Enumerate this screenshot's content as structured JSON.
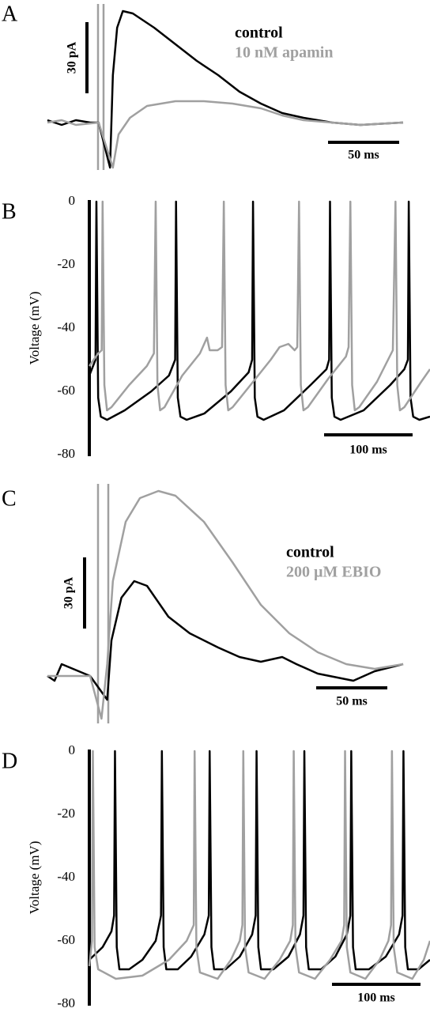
{
  "chart_data": [
    {
      "type": "line",
      "label": "A",
      "xlim": [
        0,
        250
      ],
      "ylim": [
        -20,
        50
      ],
      "scalebars": [
        {
          "value": 30,
          "label": "30 pA",
          "axis": "y"
        },
        {
          "value": 50,
          "label": "50 ms",
          "axis": "x"
        }
      ],
      "series": [
        {
          "name": "control",
          "color": "#000000",
          "x": [
            0,
            10,
            20,
            30,
            36,
            44,
            46,
            49,
            53,
            60,
            75,
            90,
            105,
            120,
            135,
            150,
            165,
            180,
            200,
            220,
            250
          ],
          "values": [
            1,
            -1,
            1,
            0,
            0,
            -19,
            20,
            40,
            47,
            46,
            40,
            33,
            26,
            20,
            13,
            8,
            4,
            2,
            0,
            -1,
            0
          ]
        },
        {
          "name": "10 nM apamin",
          "color": "#a0a0a0",
          "x": [
            0,
            10,
            20,
            36,
            46,
            50,
            58,
            70,
            90,
            110,
            130,
            150,
            165,
            180,
            200,
            220,
            250
          ],
          "values": [
            0,
            1,
            -1,
            0,
            -19,
            -5,
            2,
            7,
            9,
            9,
            8,
            6,
            3,
            1,
            0,
            -1,
            0
          ]
        }
      ]
    },
    {
      "type": "line",
      "label": "B",
      "ylabel": "Voltage (mV)",
      "xlim": [
        0,
        385
      ],
      "ylim": [
        -80,
        0
      ],
      "yticks": [
        0,
        -20,
        -40,
        -60,
        -80
      ],
      "scalebars": [
        {
          "value": 100,
          "label": "100 ms",
          "axis": "x"
        }
      ],
      "series": [
        {
          "color": "#000000",
          "x": [
            0,
            7,
            8,
            10,
            13,
            20,
            40,
            70,
            90,
            97,
            98,
            100,
            103,
            110,
            130,
            160,
            180,
            184,
            185,
            187,
            190,
            197,
            220,
            250,
            268,
            271,
            272,
            274,
            277,
            284,
            310,
            340,
            356,
            360,
            361,
            363,
            366,
            373,
            385
          ],
          "values": [
            -55,
            -50,
            0,
            -62,
            -68,
            -69,
            -66,
            -60,
            -55,
            -50,
            0,
            -62,
            -68,
            -69,
            -67,
            -60,
            -54,
            -50,
            0,
            -62,
            -68,
            -69,
            -66,
            -58,
            -53,
            -50,
            0,
            -62,
            -68,
            -69,
            -66,
            -58,
            -53,
            -50,
            0,
            -62,
            -68,
            -69,
            -68
          ]
        },
        {
          "color": "#a0a0a0",
          "x": [
            0,
            10,
            14,
            15,
            17,
            20,
            25,
            45,
            65,
            73,
            75,
            77,
            80,
            85,
            105,
            125,
            133,
            136,
            145,
            150,
            152,
            154,
            157,
            162,
            185,
            205,
            215,
            225,
            232,
            235,
            237,
            239,
            242,
            247,
            270,
            290,
            293,
            295,
            297,
            300,
            305,
            325,
            343,
            346,
            348,
            351,
            356,
            375,
            385
          ],
          "values": [
            -52,
            -48,
            -47,
            0,
            -58,
            -66,
            -65,
            -58,
            -52,
            -48,
            0,
            -58,
            -66,
            -65,
            -55,
            -48,
            -43,
            -47,
            -47,
            -46,
            0,
            -58,
            -66,
            -65,
            -57,
            -50,
            -46,
            -45,
            -47,
            -46,
            0,
            -58,
            -66,
            -65,
            -56,
            -49,
            -46,
            0,
            -58,
            -66,
            -65,
            -57,
            -47,
            0,
            -58,
            -66,
            -65,
            -57,
            -53
          ]
        }
      ]
    },
    {
      "type": "line",
      "label": "C",
      "xlim": [
        0,
        250
      ],
      "ylim": [
        -20,
        80
      ],
      "scalebars": [
        {
          "value": 30,
          "label": "30 pA",
          "axis": "y"
        },
        {
          "value": 50,
          "label": "50 ms",
          "axis": "x"
        }
      ],
      "series": [
        {
          "name": "control",
          "color": "#000000",
          "x": [
            0,
            5,
            10,
            30,
            42,
            45,
            52,
            61,
            70,
            85,
            100,
            120,
            135,
            150,
            165,
            175,
            190,
            215,
            230,
            250
          ],
          "values": [
            0,
            -2,
            5,
            0,
            -10,
            15,
            33,
            40,
            38,
            25,
            18,
            12,
            8,
            6,
            8,
            5,
            1,
            -2,
            2,
            5
          ]
        },
        {
          "name": "200 µM EBIO",
          "color": "#a0a0a0",
          "x": [
            0,
            30,
            38,
            42,
            46,
            55,
            65,
            78,
            90,
            110,
            130,
            150,
            170,
            190,
            210,
            230,
            250
          ],
          "values": [
            0,
            0,
            -18,
            5,
            40,
            65,
            75,
            78,
            76,
            65,
            48,
            30,
            18,
            10,
            5,
            3,
            5
          ]
        }
      ]
    },
    {
      "type": "line",
      "label": "D",
      "ylabel": "Voltage (mV)",
      "xlim": [
        0,
        385
      ],
      "ylim": [
        -80,
        0
      ],
      "yticks": [
        0,
        -20,
        -40,
        -60,
        -80
      ],
      "scalebars": [
        {
          "value": 100,
          "label": "100 ms",
          "axis": "x"
        }
      ],
      "series": [
        {
          "color": "#000000",
          "x": [
            0,
            15,
            25,
            28,
            29,
            31,
            34,
            45,
            60,
            75,
            81,
            82,
            84,
            87,
            100,
            115,
            130,
            135,
            136,
            138,
            141,
            154,
            170,
            184,
            188,
            189,
            191,
            194,
            208,
            225,
            238,
            242,
            243,
            245,
            248,
            262,
            278,
            291,
            295,
            296,
            298,
            301,
            316,
            335,
            350,
            354,
            355,
            357,
            360,
            372,
            385
          ],
          "values": [
            -66,
            -62,
            -57,
            -52,
            0,
            -62,
            -69,
            -69,
            -66,
            -60,
            -52,
            0,
            -62,
            -69,
            -69,
            -65,
            -58,
            -52,
            0,
            -62,
            -69,
            -69,
            -65,
            -58,
            -52,
            0,
            -62,
            -69,
            -69,
            -65,
            -58,
            -52,
            0,
            -62,
            -69,
            -69,
            -65,
            -58,
            -52,
            0,
            -62,
            -69,
            -69,
            -65,
            -58,
            -52,
            0,
            -62,
            -69,
            -69,
            -66
          ]
        },
        {
          "color": "#a0a0a0",
          "x": [
            0,
            3,
            4,
            6,
            10,
            30,
            60,
            90,
            110,
            118,
            119,
            121,
            125,
            145,
            160,
            170,
            173,
            174,
            176,
            180,
            198,
            215,
            227,
            230,
            231,
            233,
            237,
            255,
            272,
            285,
            288,
            289,
            291,
            295,
            312,
            328,
            338,
            341,
            342,
            344,
            348,
            365,
            378,
            385
          ],
          "values": [
            -68,
            -60,
            0,
            -62,
            -69,
            -72,
            -71,
            -66,
            -60,
            -55,
            0,
            -62,
            -70,
            -72,
            -66,
            -60,
            -55,
            0,
            -62,
            -70,
            -72,
            -66,
            -60,
            -55,
            0,
            -62,
            -70,
            -72,
            -66,
            -60,
            -55,
            0,
            -62,
            -70,
            -72,
            -66,
            -60,
            -55,
            0,
            -62,
            -70,
            -72,
            -66,
            -60
          ]
        }
      ]
    }
  ]
}
